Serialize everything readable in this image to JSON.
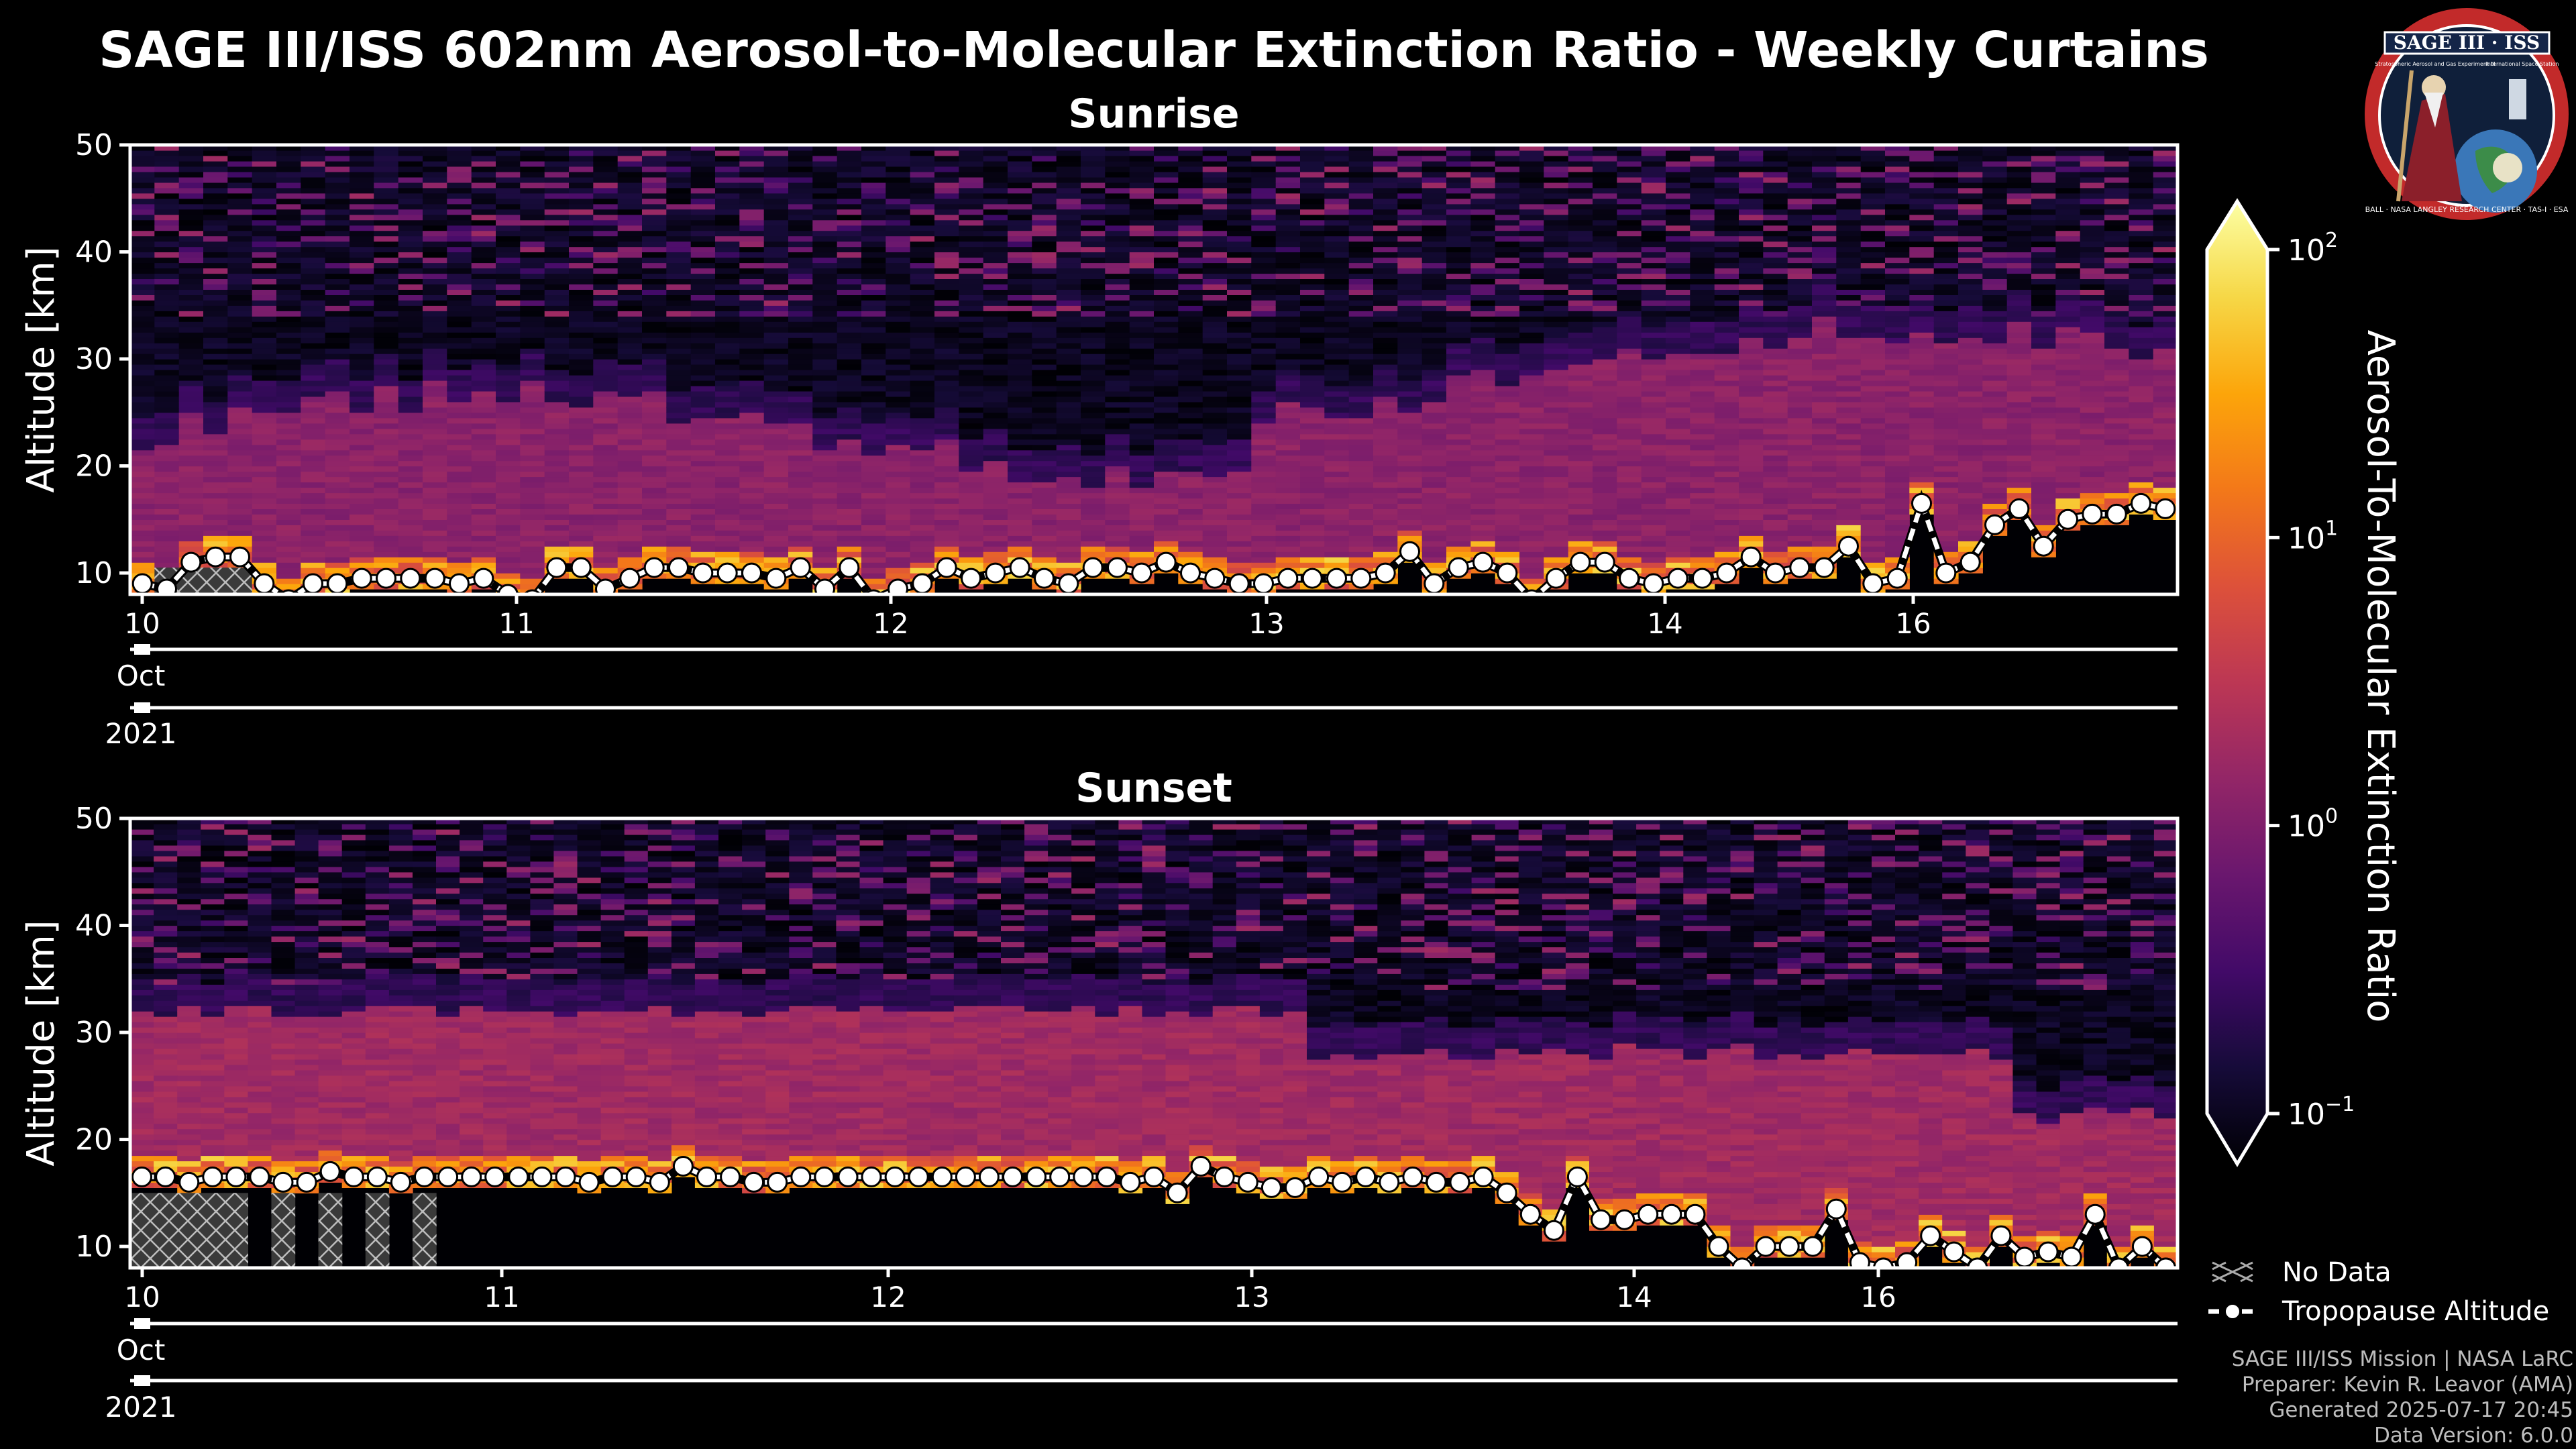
{
  "figure": {
    "title": "SAGE III/ISS 602nm Aerosol-to-Molecular Extinction Ratio - Weekly Curtains",
    "footer": [
      "SAGE III/ISS Mission | NASA LaRC",
      "Preparer: Kevin R. Leavor (AMA)",
      "Generated 2025-07-17 20:45",
      "Data Version: 6.0.0"
    ],
    "logo_text": "SAGE III · ISS",
    "logo_ring_text": "BALL · NASA LANGLEY RESEARCH CENTER · TAS-I · ESA",
    "logo_sub_text": [
      "Stratospheric Aerosol and Gas Experiment III",
      "International Space Station"
    ],
    "legend": {
      "no_data": "No Data",
      "tropopause": "Tropopause Altitude"
    },
    "colorbar": {
      "label": "Aerosol-To-Molecular Extinction Ratio",
      "scale": "log",
      "range": [
        0.1,
        100
      ],
      "ticks": [
        {
          "base": "10",
          "exp": "2",
          "value": 100
        },
        {
          "base": "10",
          "exp": "1",
          "value": 10
        },
        {
          "base": "10",
          "exp": "0",
          "value": 1
        },
        {
          "base": "10",
          "exp": "−1",
          "value": 0.1
        }
      ],
      "colormap": "inferno"
    }
  },
  "chart_data": [
    {
      "type": "heatmap",
      "title": "Sunrise",
      "ylabel": "Altitude [km]",
      "ylim": [
        8,
        50
      ],
      "yticks": [
        "10",
        "20",
        "30",
        "40",
        "50"
      ],
      "xlabel_levels": [
        "Oct",
        "2021"
      ],
      "xticks": [
        "10",
        "11",
        "12",
        "13",
        "14",
        "16"
      ],
      "tropopause_km": [
        9,
        8.5,
        11,
        11.5,
        11.5,
        9,
        7.5,
        9,
        9,
        9.5,
        9.5,
        9.5,
        9.5,
        9,
        9.5,
        8,
        7.5,
        10.5,
        10.5,
        8.5,
        9.5,
        10.5,
        10.5,
        10,
        10,
        10,
        9.5,
        10.5,
        8.5,
        10.5,
        7.5,
        8.5,
        9,
        10.5,
        9.5,
        10,
        10.5,
        9.5,
        9,
        10.5,
        10.5,
        10,
        11,
        10,
        9.5,
        9,
        9,
        9.5,
        9.5,
        9.5,
        9.5,
        10,
        12,
        9,
        10.5,
        11,
        10,
        7.5,
        9.5,
        11,
        11,
        9.5,
        9,
        9.5,
        9.5,
        10,
        11.5,
        10,
        10.5,
        10.5,
        12.5,
        9,
        9.5,
        16.5,
        10,
        11,
        14.5,
        16,
        12.5,
        15,
        15.5,
        15.5,
        16.5,
        16
      ],
      "no_data_regions": [
        "low altitudes near Oct 10",
        "scattered low cells"
      ]
    },
    {
      "type": "heatmap",
      "title": "Sunset",
      "ylabel": "Altitude [km]",
      "ylim": [
        8,
        50
      ],
      "yticks": [
        "10",
        "20",
        "30",
        "40",
        "50"
      ],
      "xlabel_levels": [
        "Oct",
        "2021"
      ],
      "xticks": [
        "10",
        "11",
        "12",
        "13",
        "14",
        "16"
      ],
      "tropopause_km": [
        16.5,
        16.5,
        16,
        16.5,
        16.5,
        16.5,
        16,
        16,
        17,
        16.5,
        16.5,
        16,
        16.5,
        16.5,
        16.5,
        16.5,
        16.5,
        16.5,
        16.5,
        16,
        16.5,
        16.5,
        16,
        17.5,
        16.5,
        16.5,
        16,
        16,
        16.5,
        16.5,
        16.5,
        16.5,
        16.5,
        16.5,
        16.5,
        16.5,
        16.5,
        16.5,
        16.5,
        16.5,
        16.5,
        16.5,
        16,
        16.5,
        15,
        17.5,
        16.5,
        16,
        15.5,
        15.5,
        16.5,
        16,
        16.5,
        16,
        16.5,
        16,
        16,
        16.5,
        15,
        13,
        11.5,
        16.5,
        12.5,
        12.5,
        13,
        13,
        13,
        10,
        8,
        10,
        10,
        10,
        13.5,
        8.5,
        8,
        8.5,
        11,
        9.5,
        8,
        11,
        9,
        9.5,
        9,
        13,
        8,
        10,
        8
      ],
      "no_data_regions": [
        "low altitudes Oct 10–11",
        "scattered low cells"
      ]
    }
  ]
}
